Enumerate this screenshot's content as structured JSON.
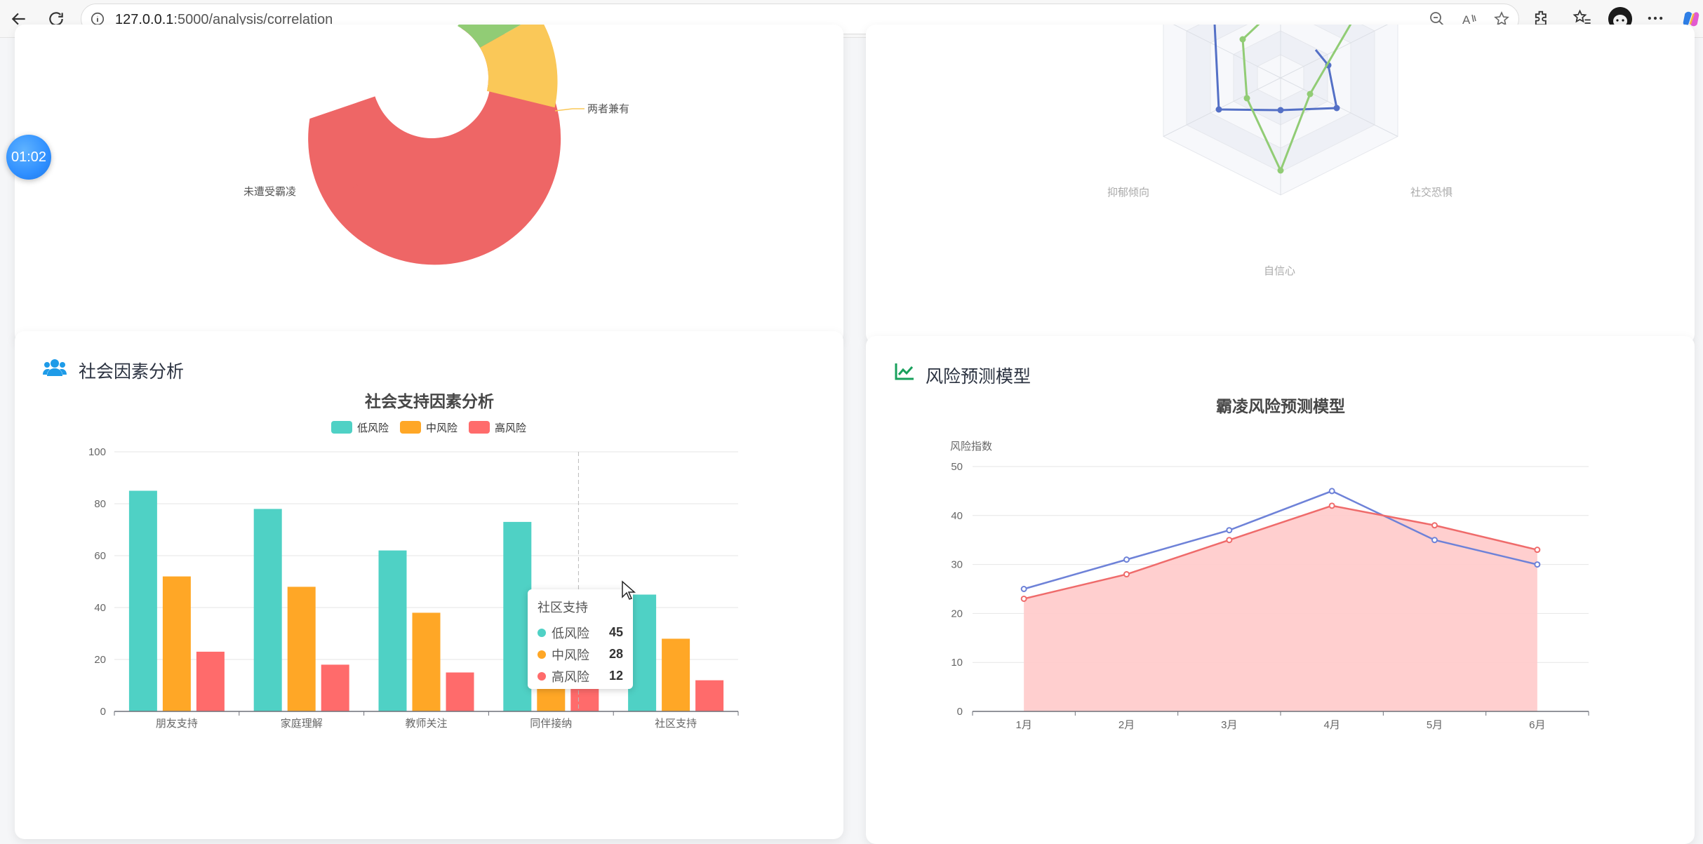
{
  "browser": {
    "url_host": "127.0.0.1",
    "url_rest": ":5000/analysis/correlation"
  },
  "timer": {
    "label": "01:02"
  },
  "donut_card": {
    "labels": [
      "两者兼有",
      "未遭受霸凌"
    ],
    "colors": {
      "red": "#ef6666",
      "yellow": "#fac858",
      "green": "#91cc75"
    }
  },
  "radar_card": {
    "indicators": [
      "抑郁倾向",
      "社交恐惧",
      "自信心"
    ],
    "colors": {
      "blue": "#5470c6",
      "green": "#91cc75"
    }
  },
  "social_card": {
    "title": "社会因素分析",
    "icon": "users-icon"
  },
  "risk_card": {
    "title": "风险预测模型",
    "icon": "line-chart-icon"
  },
  "chart_data": [
    {
      "type": "bar",
      "title": "社会支持因素分析",
      "categories": [
        "朋友支持",
        "家庭理解",
        "教师关注",
        "同伴接纳",
        "社区支持"
      ],
      "series": [
        {
          "name": "低风险",
          "values": [
            85,
            78,
            62,
            73,
            45
          ],
          "color": "#4fd1c5"
        },
        {
          "name": "中风险",
          "values": [
            52,
            48,
            38,
            45,
            28
          ],
          "color": "#ffa726"
        },
        {
          "name": "高风险",
          "values": [
            23,
            18,
            15,
            10,
            12
          ],
          "color": "#ff6b6b"
        }
      ],
      "yticks": [
        0,
        20,
        40,
        60,
        80,
        100
      ],
      "ylim": [
        0,
        100
      ],
      "legend": "top-center",
      "grid": true,
      "tooltip": {
        "title": "社区支持",
        "rows": [
          {
            "name": "低风险",
            "value": "45"
          },
          {
            "name": "中风险",
            "value": "28"
          },
          {
            "name": "高风险",
            "value": "12"
          }
        ]
      }
    },
    {
      "type": "line",
      "title": "霸凌风险预测模型",
      "ylabel": "风险指数",
      "categories": [
        "1月",
        "2月",
        "3月",
        "4月",
        "5月",
        "6月"
      ],
      "series": [
        {
          "values": [
            25,
            31,
            37,
            45,
            35,
            30
          ],
          "color": "#6e82d8"
        },
        {
          "values": [
            23,
            28,
            35,
            42,
            38,
            33
          ],
          "color": "#ef6b6b",
          "area": true
        }
      ],
      "yticks": [
        0,
        10,
        20,
        30,
        40,
        50
      ],
      "ylim": [
        0,
        50
      ],
      "grid": true
    }
  ]
}
